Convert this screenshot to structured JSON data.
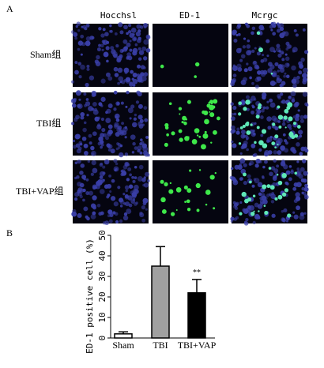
{
  "panel_a": {
    "label": "A",
    "columns": [
      "Hocchsl",
      "ED-1",
      "Mcrgc"
    ],
    "rows": [
      "Sham组",
      "TBI组",
      "TBI+VAP组"
    ]
  },
  "chart_data": {
    "type": "bar",
    "panel_label": "B",
    "y_label": "ED-1 positive cell (%)",
    "categories": [
      "Sham",
      "TBI",
      "TBI+VAP"
    ],
    "values": [
      2,
      35,
      22
    ],
    "errors": [
      1,
      9.5,
      6.5
    ],
    "colors": [
      "#ffffff",
      "#a0a0a0",
      "#000000"
    ],
    "annotations": [
      "**"
    ],
    "ylim": [
      0,
      50
    ],
    "yticks": [
      0,
      10,
      20,
      30,
      40,
      50
    ]
  }
}
